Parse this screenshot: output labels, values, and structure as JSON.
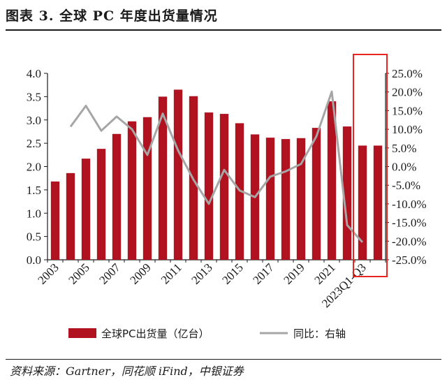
{
  "title": "图表 3.  全球 PC 年度出货量情况",
  "source": "资料来源：Gartner，同花顺 iFind，中银证券",
  "colors": {
    "bar": "#b1121f",
    "line": "#a6a6a6",
    "highlight": "#e8261f",
    "axis": "#1a1a1a"
  },
  "chart_data": {
    "type": "bar",
    "categories": [
      "2003",
      "2004",
      "2005",
      "2006",
      "2007",
      "2008",
      "2009",
      "2010",
      "2011",
      "2012",
      "2013",
      "2014",
      "2015",
      "2016",
      "2017",
      "2018",
      "2019",
      "2020",
      "2021",
      "2022",
      "2023Q1-Q3",
      "2023E"
    ],
    "x_tick_labels": [
      "2003",
      "",
      "2005",
      "",
      "2007",
      "",
      "2009",
      "",
      "2011",
      "",
      "2013",
      "",
      "2015",
      "",
      "2017",
      "",
      "2019",
      "",
      "2021",
      "",
      "2023Q1-Q3",
      ""
    ],
    "series": [
      {
        "name": "全球PC出货量（亿台）",
        "type": "bar",
        "axis": "left",
        "values": [
          1.68,
          1.86,
          2.17,
          2.38,
          2.7,
          2.97,
          3.06,
          3.5,
          3.65,
          3.51,
          3.16,
          3.13,
          2.93,
          2.69,
          2.62,
          2.59,
          2.61,
          2.83,
          3.4,
          2.86,
          2.45,
          2.45
        ]
      },
      {
        "name": "同比：右轴",
        "type": "line",
        "axis": "right",
        "values": [
          null,
          10.7,
          16.3,
          9.6,
          13.4,
          10.0,
          3.1,
          14.2,
          4.3,
          -3.5,
          -10.0,
          -0.9,
          -6.4,
          -8.2,
          -2.7,
          -1.3,
          0.7,
          8.1,
          20.1,
          -15.7,
          -20.3,
          null
        ]
      }
    ],
    "y_left": {
      "min": 0,
      "max": 4.0,
      "ticks": [
        "0.0",
        "0.5",
        "1.0",
        "1.5",
        "2.0",
        "2.5",
        "3.0",
        "3.5",
        "4.0"
      ]
    },
    "y_right": {
      "min": -25,
      "max": 25,
      "ticks": [
        "-25.0%",
        "-20.0%",
        "-15.0%",
        "-10.0%",
        "-5.0%",
        "0.0%",
        "5.0%",
        "10.0%",
        "15.0%",
        "20.0%",
        "25.0%"
      ]
    },
    "legend_position": "bottom",
    "grid": false
  }
}
